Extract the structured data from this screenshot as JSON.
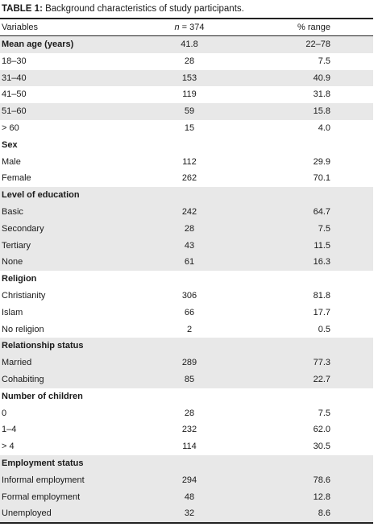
{
  "caption": {
    "label": "TABLE 1:",
    "text": " Background characteristics of study participants."
  },
  "header": {
    "col1": "Variables",
    "col2_italic": "n",
    "col2_rest": " = 374",
    "col3": "% range"
  },
  "rows": [
    {
      "label": "Mean age (years)",
      "n": "41.8",
      "pct": "22–78",
      "bold": true,
      "shaded": true
    },
    {
      "label": "18–30",
      "n": "28",
      "pct": "7.5",
      "bold": false,
      "shaded": false
    },
    {
      "label": "31–40",
      "n": "153",
      "pct": "40.9",
      "bold": false,
      "shaded": true
    },
    {
      "label": "41–50",
      "n": "119",
      "pct": "31.8",
      "bold": false,
      "shaded": false
    },
    {
      "label": "51–60",
      "n": "59",
      "pct": "15.8",
      "bold": false,
      "shaded": true
    },
    {
      "label": "> 60",
      "n": "15",
      "pct": "4.0",
      "bold": false,
      "shaded": false
    },
    {
      "label": "Sex",
      "n": "",
      "pct": "",
      "bold": true,
      "shaded": false
    },
    {
      "label": "Male",
      "n": "112",
      "pct": "29.9",
      "bold": false,
      "shaded": false
    },
    {
      "label": "Female",
      "n": "262",
      "pct": "70.1",
      "bold": false,
      "shaded": false
    },
    {
      "label": "Level of education",
      "n": "",
      "pct": "",
      "bold": true,
      "shaded": true
    },
    {
      "label": "Basic",
      "n": "242",
      "pct": "64.7",
      "bold": false,
      "shaded": true
    },
    {
      "label": "Secondary",
      "n": "28",
      "pct": "7.5",
      "bold": false,
      "shaded": true
    },
    {
      "label": "Tertiary",
      "n": "43",
      "pct": "11.5",
      "bold": false,
      "shaded": true
    },
    {
      "label": "None",
      "n": "61",
      "pct": "16.3",
      "bold": false,
      "shaded": true
    },
    {
      "label": "Religion",
      "n": "",
      "pct": "",
      "bold": true,
      "shaded": false
    },
    {
      "label": "Christianity",
      "n": "306",
      "pct": "81.8",
      "bold": false,
      "shaded": false
    },
    {
      "label": "Islam",
      "n": "66",
      "pct": "17.7",
      "bold": false,
      "shaded": false
    },
    {
      "label": "No religion",
      "n": "2",
      "pct": "0.5",
      "bold": false,
      "shaded": false
    },
    {
      "label": "Relationship status",
      "n": "",
      "pct": "",
      "bold": true,
      "shaded": true
    },
    {
      "label": "Married",
      "n": "289",
      "pct": "77.3",
      "bold": false,
      "shaded": true
    },
    {
      "label": "Cohabiting",
      "n": "85",
      "pct": "22.7",
      "bold": false,
      "shaded": true
    },
    {
      "label": "Number of children",
      "n": "",
      "pct": "",
      "bold": true,
      "shaded": false
    },
    {
      "label": "0",
      "n": "28",
      "pct": "7.5",
      "bold": false,
      "shaded": false
    },
    {
      "label": "1–4",
      "n": "232",
      "pct": "62.0",
      "bold": false,
      "shaded": false
    },
    {
      "label": "> 4",
      "n": "114",
      "pct": "30.5",
      "bold": false,
      "shaded": false
    },
    {
      "label": "Employment status",
      "n": "",
      "pct": "",
      "bold": true,
      "shaded": true
    },
    {
      "label": "Informal employment",
      "n": "294",
      "pct": "78.6",
      "bold": false,
      "shaded": true
    },
    {
      "label": "Formal employment",
      "n": "48",
      "pct": "12.8",
      "bold": false,
      "shaded": true
    },
    {
      "label": "Unemployed",
      "n": "32",
      "pct": "8.6",
      "bold": false,
      "shaded": true
    }
  ]
}
